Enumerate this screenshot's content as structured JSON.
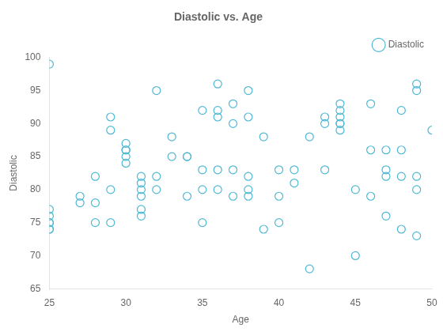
{
  "chart_data": {
    "type": "scatter",
    "title": "Diastolic vs. Age",
    "xlabel": "Age",
    "ylabel": "Diastolic",
    "x": [
      25,
      25,
      25,
      25,
      25,
      25,
      25,
      27,
      27,
      28,
      28,
      28,
      29,
      29,
      29,
      29,
      30,
      30,
      30,
      30,
      30,
      31,
      31,
      31,
      31,
      31,
      31,
      32,
      32,
      32,
      33,
      33,
      34,
      34,
      34,
      35,
      35,
      35,
      35,
      36,
      36,
      36,
      36,
      36,
      37,
      37,
      37,
      37,
      38,
      38,
      38,
      38,
      38,
      39,
      39,
      40,
      40,
      40,
      41,
      41,
      42,
      42,
      43,
      43,
      43,
      44,
      44,
      44,
      44,
      44,
      44,
      45,
      45,
      46,
      46,
      46,
      47,
      47,
      47,
      47,
      48,
      48,
      48,
      48,
      49,
      49,
      49,
      49,
      49,
      50
    ],
    "series": [
      {
        "name": "Diastolic",
        "color": "#4db8d4",
        "marker": "circle",
        "values": [
          99,
          77,
          76,
          75,
          75,
          74,
          74,
          79,
          78,
          82,
          78,
          75,
          91,
          89,
          80,
          75,
          87,
          86,
          86,
          85,
          84,
          82,
          81,
          80,
          79,
          77,
          76,
          95,
          82,
          80,
          88,
          85,
          85,
          85,
          79,
          92,
          83,
          80,
          75,
          96,
          92,
          91,
          83,
          80,
          93,
          90,
          83,
          79,
          95,
          91,
          82,
          80,
          79,
          88,
          74,
          83,
          79,
          75,
          83,
          81,
          88,
          68,
          91,
          90,
          83,
          93,
          92,
          91,
          90,
          90,
          89,
          70,
          80,
          93,
          86,
          79,
          86,
          83,
          82,
          76,
          92,
          86,
          82,
          74,
          96,
          95,
          82,
          80,
          73,
          89
        ]
      }
    ],
    "xlim": [
      25,
      50
    ],
    "ylim": [
      65,
      100
    ],
    "xticks": [
      25,
      30,
      35,
      40,
      45,
      50
    ],
    "yticks": [
      65,
      70,
      75,
      80,
      85,
      90,
      95,
      100
    ],
    "grid": false,
    "legend": "upper right"
  }
}
